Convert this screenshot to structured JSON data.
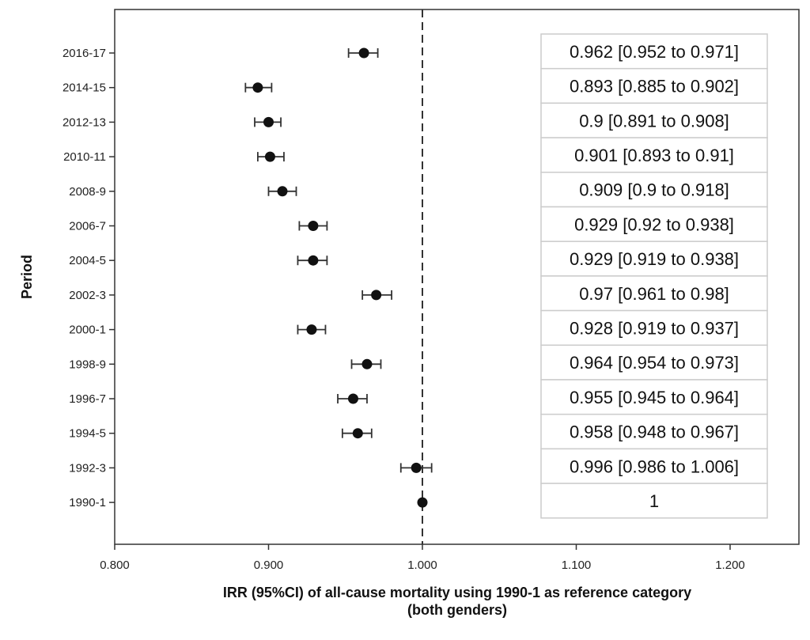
{
  "chart_data": {
    "type": "scatter",
    "subtype": "forest-plot",
    "title": "",
    "xlabel": "IRR (95%CI) of all-cause mortality using 1990-1 as reference category",
    "xlabel_line2": "(both genders)",
    "ylabel": "Period",
    "xlim": [
      0.8,
      1.25
    ],
    "xticks": [
      "0.800",
      "0.900",
      "1.000",
      "1.100",
      "1.200"
    ],
    "reference_line": 1.0,
    "grid": false,
    "categories": [
      "2016-17",
      "2014-15",
      "2012-13",
      "2010-11",
      "2008-9",
      "2006-7",
      "2004-5",
      "2002-3",
      "2000-1",
      "1998-9",
      "1996-7",
      "1994-5",
      "1992-3",
      "1990-1"
    ],
    "estimates": [
      0.962,
      0.893,
      0.9,
      0.901,
      0.909,
      0.929,
      0.929,
      0.97,
      0.928,
      0.964,
      0.955,
      0.958,
      0.996,
      1
    ],
    "lower": [
      0.952,
      0.885,
      0.891,
      0.893,
      0.9,
      0.92,
      0.919,
      0.961,
      0.919,
      0.954,
      0.945,
      0.948,
      0.986,
      1
    ],
    "upper": [
      0.971,
      0.902,
      0.908,
      0.91,
      0.918,
      0.938,
      0.938,
      0.98,
      0.937,
      0.973,
      0.964,
      0.967,
      1.006,
      1
    ],
    "ci_labels": [
      "0.962 [0.952 to 0.971]",
      "0.893 [0.885 to 0.902]",
      "0.9 [0.891 to 0.908]",
      "0.901 [0.893 to 0.91]",
      "0.909 [0.9 to 0.918]",
      "0.929 [0.92 to 0.938]",
      "0.929 [0.919 to 0.938]",
      "0.97 [0.961 to 0.98]",
      "0.928 [0.919 to 0.937]",
      "0.964 [0.954 to 0.973]",
      "0.955 [0.945 to 0.964]",
      "0.958 [0.948 to 0.967]",
      "0.996 [0.986 to 1.006]",
      "1"
    ],
    "colors": {
      "marker": "#111111",
      "axis": "#333333",
      "table_border": "#cccccc"
    }
  }
}
